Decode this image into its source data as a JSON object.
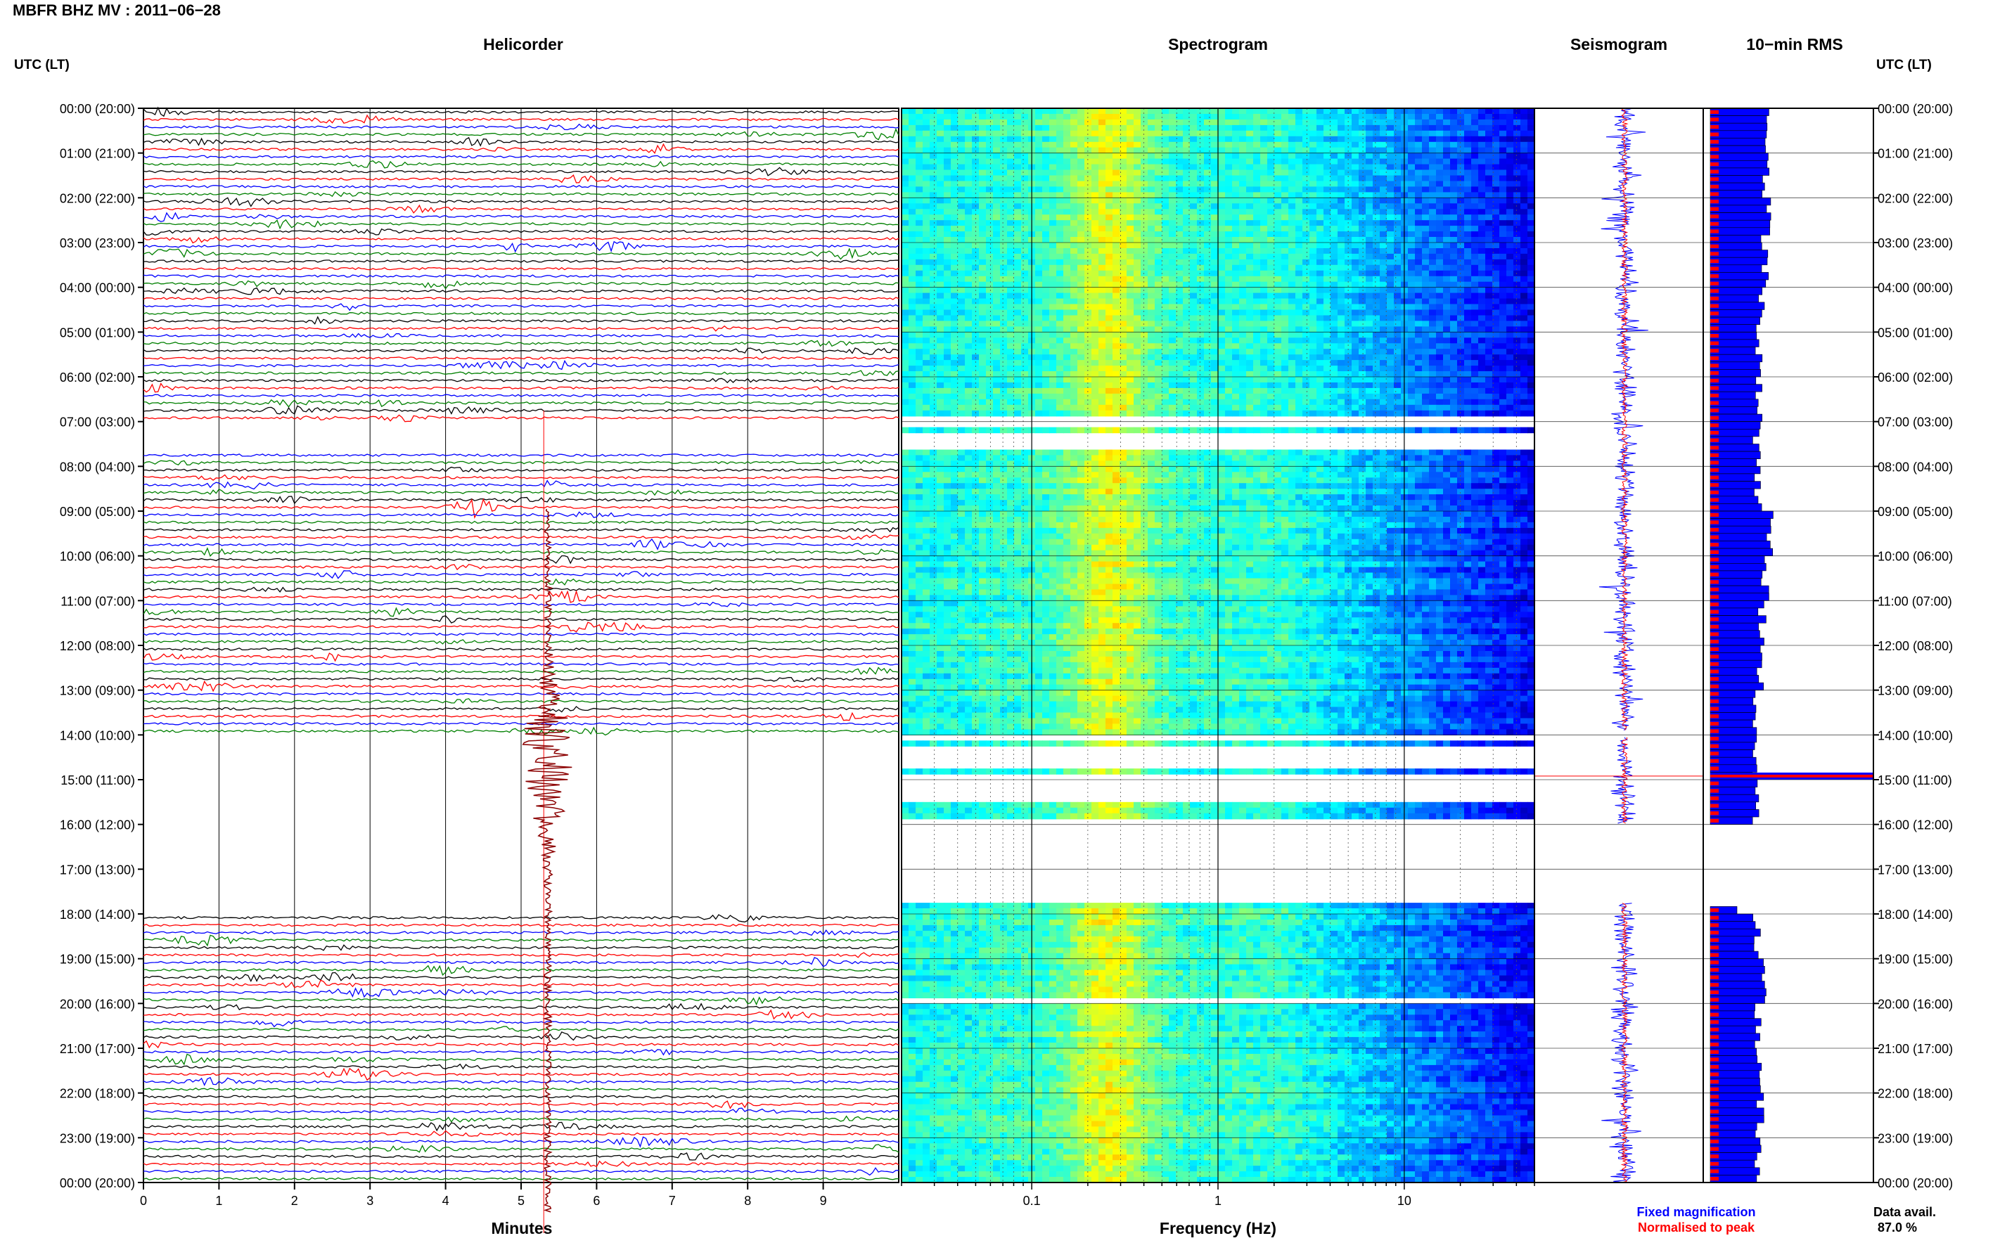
{
  "header": {
    "title": "MBFR BHZ MV : 2011−06−28",
    "utc_lt_label": "UTC (LT)"
  },
  "panels": {
    "helicorder": "Helicorder",
    "spectrogram": "Spectrogram",
    "seismogram": "Seismogram",
    "rms": "10−min RMS"
  },
  "legend": {
    "fixed": "Fixed magnification",
    "normalised": "Normalised to peak"
  },
  "data_availability": {
    "label": "Data avail.",
    "value": "87.0 %"
  },
  "colors": {
    "trace_cycle": [
      "#000000",
      "#ff0000",
      "#0000ff",
      "#008000"
    ],
    "trace_dark_red": "#8b0000",
    "fixed": "#0000ff",
    "normalised": "#ff0000",
    "event_marker": "#ff0000"
  },
  "chart_data": [
    {
      "type": "line",
      "name": "helicorder",
      "title": "Helicorder",
      "xlabel": "Minutes",
      "xlim": [
        0,
        10
      ],
      "x_ticks": [
        0,
        1,
        2,
        3,
        4,
        5,
        6,
        7,
        8,
        9
      ],
      "rows_per_hour": 6,
      "hour_labels": [
        "00:00 (20:00)",
        "01:00 (21:00)",
        "02:00 (22:00)",
        "03:00 (23:00)",
        "04:00 (00:00)",
        "05:00 (01:00)",
        "06:00 (02:00)",
        "07:00 (03:00)",
        "08:00 (04:00)",
        "09:00 (05:00)",
        "10:00 (06:00)",
        "11:00 (07:00)",
        "12:00 (08:00)",
        "13:00 (09:00)",
        "14:00 (10:00)",
        "15:00 (11:00)",
        "16:00 (12:00)",
        "17:00 (13:00)",
        "18:00 (14:00)",
        "19:00 (15:00)",
        "20:00 (16:00)",
        "21:00 (17:00)",
        "22:00 (18:00)",
        "23:00 (19:00)",
        "00:00 (20:00)"
      ],
      "gaps_hours": [
        [
          7.0,
          7.6
        ],
        [
          13.9,
          16.0
        ],
        [
          16.0,
          18.0
        ]
      ],
      "event": {
        "time_hour": 14.92,
        "minute": 5.3
      }
    },
    {
      "type": "heatmap",
      "name": "spectrogram",
      "title": "Spectrogram",
      "xlabel": "Frequency (Hz)",
      "x_scale": "log",
      "xlim": [
        0.02,
        50
      ],
      "x_ticks": [
        0.1,
        1,
        10
      ],
      "x_tick_labels": [
        "0.1",
        "1",
        "10"
      ],
      "colormap": "jet",
      "gaps_hours": [
        [
          6.85,
          7.05
        ],
        [
          7.15,
          7.6
        ],
        [
          13.9,
          14.1
        ],
        [
          14.2,
          14.65
        ],
        [
          14.8,
          14.95
        ],
        [
          15.0,
          15.5
        ],
        [
          15.85,
          17.75
        ],
        [
          19.8,
          19.95
        ]
      ]
    },
    {
      "type": "line",
      "name": "seismogram",
      "title": "Seismogram",
      "series": [
        {
          "name": "Fixed magnification",
          "color": "#0000ff"
        },
        {
          "name": "Normalised to peak",
          "color": "#ff0000"
        }
      ],
      "gaps_hours": [
        [
          16.0,
          17.75
        ]
      ]
    },
    {
      "type": "bar",
      "name": "rms",
      "title": "10−min RMS",
      "orientation": "horizontal",
      "series": [
        {
          "name": "Fixed magnification",
          "color": "#0000ff"
        },
        {
          "name": "Normalised to peak",
          "color": "#ff0000"
        }
      ],
      "hourly_level": [
        1.0,
        1.0,
        1.05,
        0.95,
        0.85,
        0.8,
        0.75,
        0.7,
        0.75,
        1.1,
        0.95,
        0.9,
        0.8,
        0.7,
        0.6,
        0.65,
        0.0,
        0.0,
        0.7,
        0.9,
        0.75,
        0.8,
        0.8,
        0.75
      ],
      "peak_hour": 14.92,
      "gaps_hours": [
        [
          16.0,
          17.75
        ]
      ]
    }
  ]
}
